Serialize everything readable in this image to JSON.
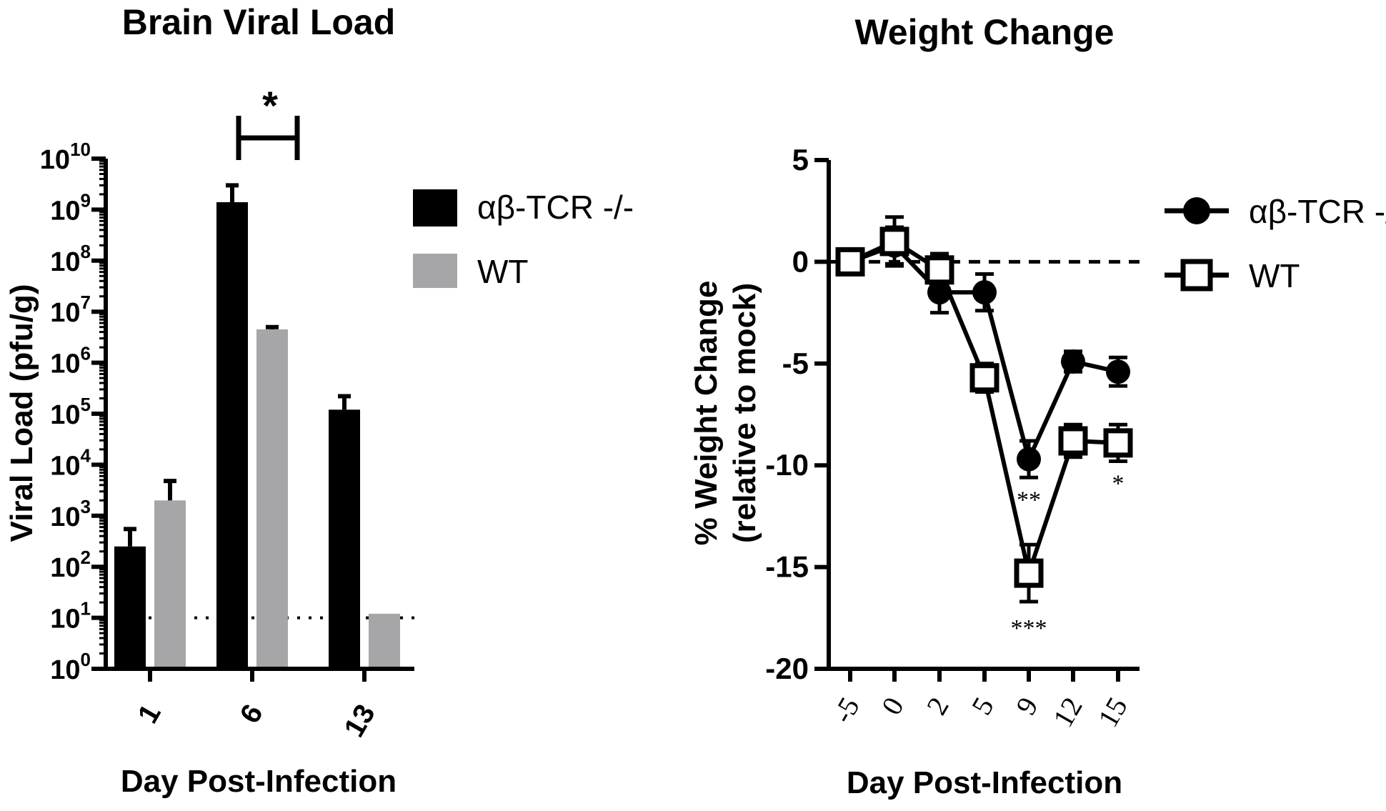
{
  "chart_data": [
    {
      "type": "bar",
      "title": "Brain Viral Load",
      "xlabel": "Day Post-Infection",
      "ylabel": "Viral Load (pfu/g)",
      "yscale": "log",
      "ylim_exponents": [
        0,
        10
      ],
      "y_tick_base": "10",
      "y_tick_exponents": [
        "0",
        "1",
        "2",
        "3",
        "4",
        "5",
        "6",
        "7",
        "8",
        "9",
        "10"
      ],
      "categories": [
        "1",
        "6",
        "13"
      ],
      "series": [
        {
          "name": "αβ-TCR -/-",
          "color": "#000000",
          "values": [
            250,
            1400000000,
            120000
          ],
          "error_upper": [
            550,
            3000000000,
            220000
          ]
        },
        {
          "name": "WT",
          "color": "#a6a6a8",
          "values": [
            2000,
            4500000,
            12
          ],
          "error_upper": [
            4800,
            5000000,
            12
          ]
        }
      ],
      "limit_of_detection": 10,
      "annotations": [
        {
          "text": "*",
          "between": "6: αβ-TCR -/- vs WT"
        }
      ]
    },
    {
      "type": "line",
      "title": "Weight Change",
      "xlabel": "Day Post-Infection",
      "ylabel_line1": "% Weight Change",
      "ylabel_line2": "(relative to mock)",
      "ylim": [
        -20,
        5
      ],
      "y_ticks": [
        "5",
        "0",
        "-5",
        "-10",
        "-15",
        "-20"
      ],
      "y_tick_values": [
        5,
        0,
        -5,
        -10,
        -15,
        -20
      ],
      "x": [
        "-5",
        "0",
        "2",
        "5",
        "9",
        "12",
        "15"
      ],
      "reference_line": 0,
      "series": [
        {
          "name": "αβ-TCR -/-",
          "marker": "filled-circle",
          "values": [
            0,
            0.8,
            -1.5,
            -1.5,
            -9.7,
            -4.9,
            -5.4
          ],
          "error": [
            0.6,
            0.9,
            1.0,
            0.9,
            0.9,
            0.5,
            0.7
          ]
        },
        {
          "name": "WT",
          "marker": "open-square",
          "values": [
            0,
            1.0,
            -0.4,
            -5.7,
            -15.3,
            -8.8,
            -8.9
          ],
          "error": [
            0.5,
            1.2,
            0.8,
            0.7,
            1.4,
            0.8,
            0.9
          ]
        }
      ],
      "annotations": [
        {
          "x": "9",
          "text": "**"
        },
        {
          "x": "9",
          "text": "***"
        },
        {
          "x": "15",
          "text": "*"
        }
      ]
    }
  ]
}
